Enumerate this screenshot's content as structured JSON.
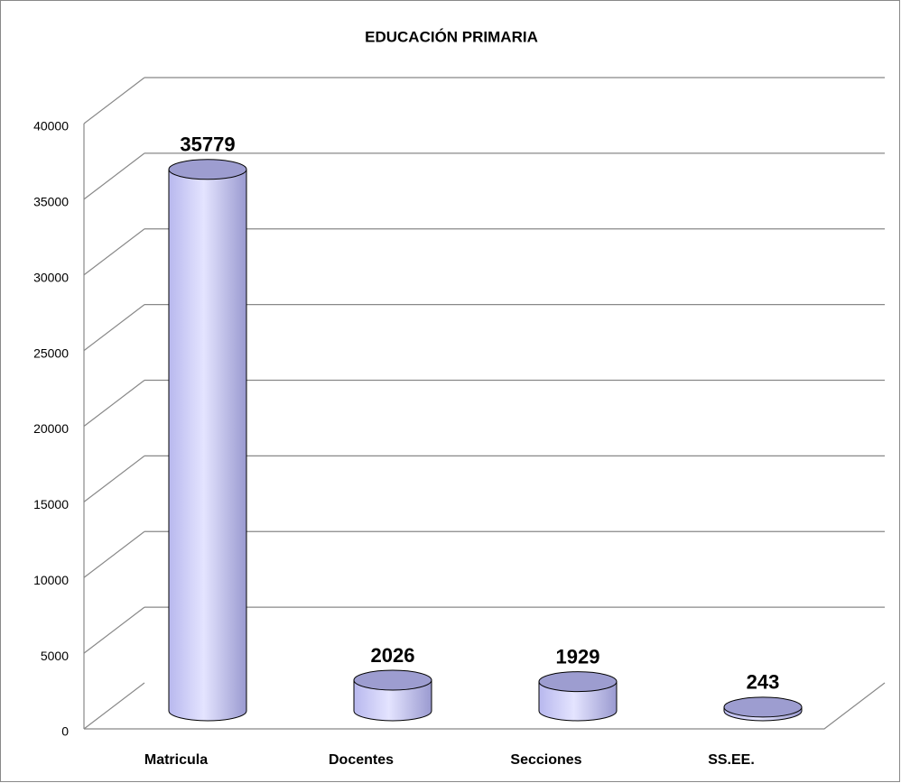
{
  "chart_data": {
    "type": "bar",
    "title": "EDUCACIÓN PRIMARIA",
    "categories": [
      "Matricula",
      "Docentes",
      "Secciones",
      "SS.EE."
    ],
    "values": [
      35779,
      2026,
      1929,
      243
    ],
    "color": "#ccccff",
    "ylim": [
      0,
      40000
    ],
    "yticks": [
      0,
      5000,
      10000,
      15000,
      20000,
      25000,
      30000,
      35000,
      40000
    ],
    "grid": true
  }
}
